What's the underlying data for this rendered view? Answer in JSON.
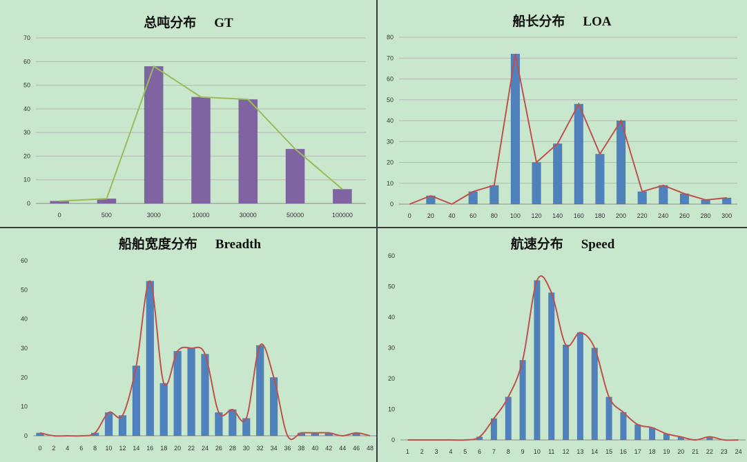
{
  "colors": {
    "background": "#c8e7cc",
    "gridline": "#b7b7b7",
    "gt_bar": "#8064a2",
    "gt_line": "#9bbb59",
    "bar": "#4f81bd",
    "curve": "#c0504d"
  },
  "chart_data": [
    {
      "type": "bar",
      "title_cn": "总吨分布",
      "title_en": "GT",
      "categories": [
        "0",
        "500",
        "3000",
        "10000",
        "30000",
        "50000",
        "100000"
      ],
      "values": [
        1,
        2,
        58,
        45,
        44,
        23,
        6
      ],
      "overlay_line": [
        1,
        2,
        58,
        45,
        44,
        23,
        6
      ],
      "ylim": [
        0,
        70
      ],
      "yticks": [
        "0",
        "10",
        "20",
        "30",
        "40",
        "50",
        "60",
        "70"
      ],
      "grid": true
    },
    {
      "type": "bar",
      "title_cn": "船长分布",
      "title_en": "LOA",
      "categories": [
        "0",
        "20",
        "40",
        "60",
        "80",
        "100",
        "120",
        "140",
        "160",
        "180",
        "200",
        "220",
        "240",
        "260",
        "280",
        "300"
      ],
      "values": [
        0,
        4,
        0,
        6,
        9,
        72,
        20,
        29,
        48,
        24,
        40,
        6,
        9,
        5,
        2,
        3
      ],
      "overlay_line": [
        0,
        4,
        0,
        6,
        9,
        72,
        20,
        29,
        48,
        24,
        40,
        6,
        9,
        5,
        2,
        3
      ],
      "ylim": [
        0,
        80
      ],
      "yticks": [
        "0",
        "10",
        "20",
        "30",
        "40",
        "50",
        "60",
        "70",
        "80"
      ],
      "grid": true
    },
    {
      "type": "bar",
      "title_cn": "船舶宽度分布",
      "title_en": "Breadth",
      "categories": [
        "0",
        "2",
        "4",
        "6",
        "8",
        "10",
        "12",
        "14",
        "16",
        "18",
        "20",
        "22",
        "24",
        "26",
        "28",
        "30",
        "32",
        "34",
        "36",
        "38",
        "40",
        "42",
        "44",
        "46",
        "48"
      ],
      "values": [
        1,
        0,
        0,
        0,
        1,
        8,
        7,
        24,
        53,
        18,
        29,
        30,
        28,
        8,
        9,
        6,
        31,
        20,
        0,
        1,
        1,
        1,
        0,
        1,
        0
      ],
      "overlay_curve": [
        1,
        0,
        0,
        0,
        1,
        8,
        7,
        24,
        53,
        18,
        29,
        30,
        28,
        8,
        9,
        6,
        31,
        20,
        0,
        1,
        1,
        1,
        0,
        1,
        0
      ],
      "ylim": [
        0,
        60
      ],
      "yticks": [
        "0",
        "10",
        "20",
        "30",
        "40",
        "50",
        "60"
      ],
      "grid": false
    },
    {
      "type": "bar",
      "title_cn": "航速分布",
      "title_en": "Speed",
      "categories": [
        "1",
        "2",
        "3",
        "4",
        "5",
        "6",
        "7",
        "8",
        "9",
        "10",
        "11",
        "12",
        "13",
        "14",
        "15",
        "16",
        "17",
        "18",
        "19",
        "20",
        "21",
        "22",
        "23",
        "24"
      ],
      "values": [
        0,
        0,
        0,
        0,
        0,
        1,
        7,
        14,
        26,
        52,
        48,
        31,
        35,
        30,
        14,
        9,
        5,
        4,
        2,
        1,
        0,
        1,
        0,
        0
      ],
      "overlay_curve": [
        0,
        0,
        0,
        0,
        0,
        1,
        7,
        14,
        26,
        52,
        48,
        31,
        35,
        30,
        14,
        9,
        5,
        4,
        2,
        1,
        0,
        1,
        0,
        0
      ],
      "ylim": [
        0,
        60
      ],
      "yticks": [
        "0",
        "10",
        "20",
        "30",
        "40",
        "50",
        "60"
      ],
      "grid": false
    }
  ]
}
